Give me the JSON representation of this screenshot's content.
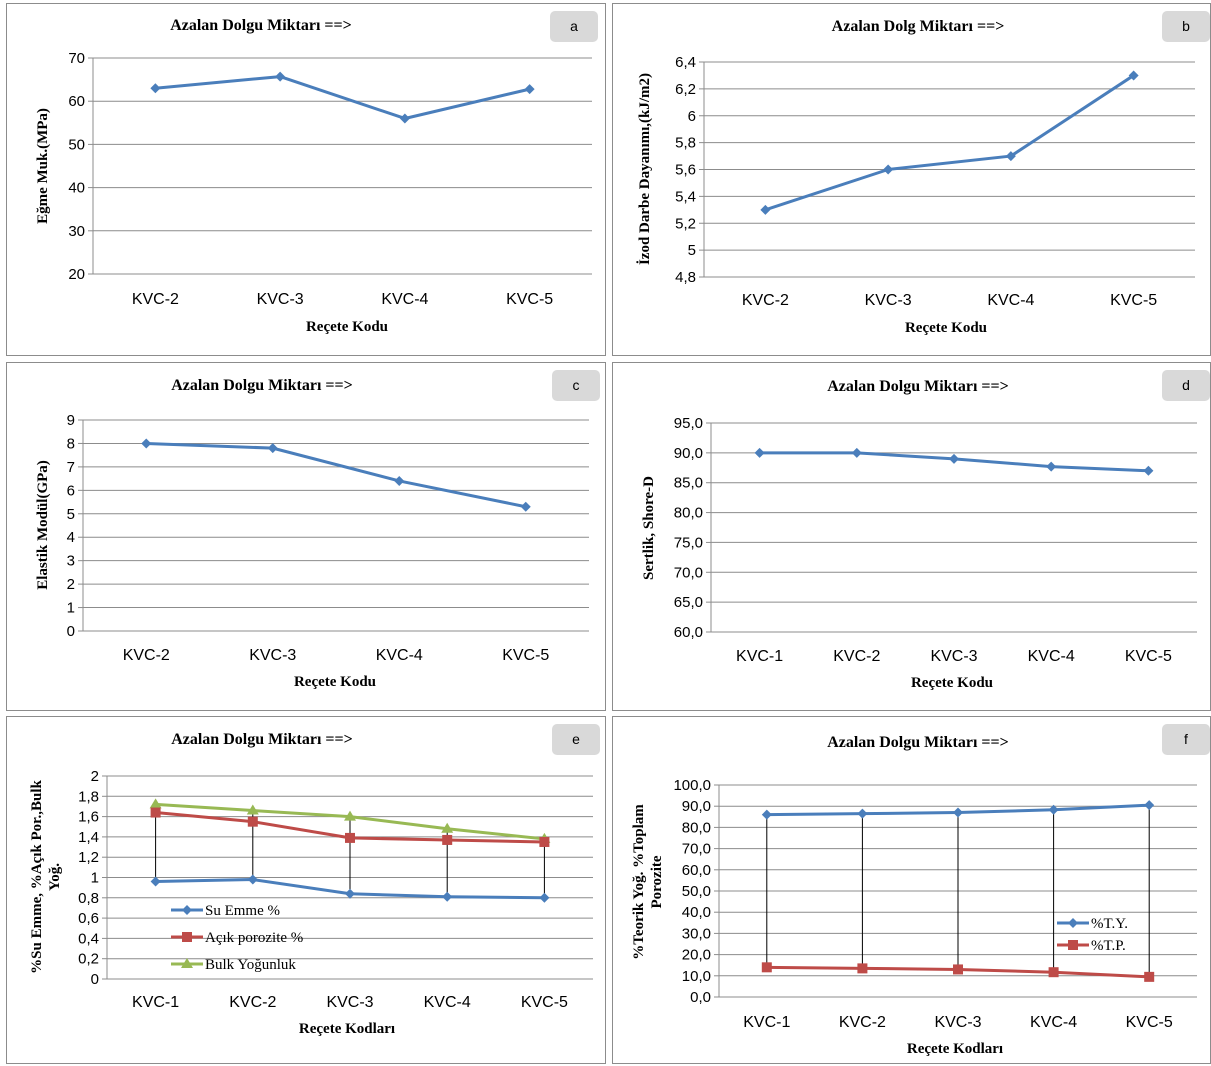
{
  "chart_data": [
    {
      "id": "a",
      "type": "line",
      "title": "Azalan Dolgu Miktarı ==>",
      "badge": "a",
      "xlabel": "Reçete Kodu",
      "ylabel": "Eğme Muk.(MPa)",
      "categories": [
        "KVC-2",
        "KVC-3",
        "KVC-4",
        "KVC-5"
      ],
      "ylim": [
        20,
        70
      ],
      "ystep": 10,
      "yticks": [
        "20",
        "30",
        "40",
        "50",
        "60",
        "70"
      ],
      "series": [
        {
          "values": [
            63,
            65.7,
            56,
            62.8
          ],
          "color": "#4a7ebb",
          "marker": "diamond"
        }
      ]
    },
    {
      "id": "b",
      "type": "line",
      "title": "Azalan Dolg Miktarı ==>",
      "badge": "b",
      "xlabel": "Reçete Kodu",
      "ylabel": "İzod Darbe Dayanımı,(kJ/m2)",
      "categories": [
        "KVC-2",
        "KVC-3",
        "KVC-4",
        "KVC-5"
      ],
      "ylim": [
        4.8,
        6.4
      ],
      "ystep": 0.2,
      "yticks": [
        "4,8",
        "5",
        "5,2",
        "5,4",
        "5,6",
        "5,8",
        "6",
        "6,2",
        "6,4"
      ],
      "series": [
        {
          "values": [
            5.3,
            5.6,
            5.7,
            6.3
          ],
          "color": "#4a7ebb",
          "marker": "diamond"
        }
      ]
    },
    {
      "id": "c",
      "type": "line",
      "title": "Azalan Dolgu Miktarı ==>",
      "badge": "c",
      "xlabel": "Reçete Kodu",
      "ylabel": "Elastik Modül(GPa)",
      "categories": [
        "KVC-2",
        "KVC-3",
        "KVC-4",
        "KVC-5"
      ],
      "ylim": [
        0,
        9
      ],
      "ystep": 1,
      "yticks": [
        "0",
        "1",
        "2",
        "3",
        "4",
        "5",
        "6",
        "7",
        "8",
        "9"
      ],
      "series": [
        {
          "values": [
            8.0,
            7.8,
            6.4,
            5.3
          ],
          "color": "#4a7ebb",
          "marker": "diamond"
        }
      ]
    },
    {
      "id": "d",
      "type": "line",
      "title": "Azalan Dolgu Miktarı ==>",
      "badge": "d",
      "xlabel": "Reçete Kodu",
      "ylabel": "Sertlik, Shore-D",
      "categories": [
        "KVC-1",
        "KVC-2",
        "KVC-3",
        "KVC-4",
        "KVC-5"
      ],
      "ylim": [
        60,
        95
      ],
      "ystep": 5,
      "yticks": [
        "60,0",
        "65,0",
        "70,0",
        "75,0",
        "80,0",
        "85,0",
        "90,0",
        "95,0"
      ],
      "series": [
        {
          "values": [
            90.0,
            90.0,
            89.0,
            87.7,
            87.0
          ],
          "color": "#4a7ebb",
          "marker": "diamond"
        }
      ]
    },
    {
      "id": "e",
      "type": "line",
      "title": "Azalan Dolgu Miktarı ==>",
      "badge": "e",
      "xlabel": "Reçete Kodları",
      "ylabel_lines": [
        "%Su Emme, %Açık Por.,Bulk",
        "Yoğ."
      ],
      "categories": [
        "KVC-1",
        "KVC-2",
        "KVC-3",
        "KVC-4",
        "KVC-5"
      ],
      "ylim": [
        0,
        2
      ],
      "ystep": 0.2,
      "yticks": [
        "0",
        "0,2",
        "0,4",
        "0,6",
        "0,8",
        "1",
        "1,2",
        "1,4",
        "1,6",
        "1,8",
        "2"
      ],
      "droplines": true,
      "series": [
        {
          "name": "Su Emme %",
          "values": [
            0.96,
            0.98,
            0.84,
            0.81,
            0.8
          ],
          "color": "#4a7ebb",
          "marker": "diamond"
        },
        {
          "name": "Açık porozite %",
          "values": [
            1.64,
            1.55,
            1.39,
            1.37,
            1.35
          ],
          "color": "#be4b48",
          "marker": "square"
        },
        {
          "name": "Bulk Yoğunluk",
          "values": [
            1.72,
            1.66,
            1.6,
            1.48,
            1.38
          ],
          "color": "#98b954",
          "marker": "triangle"
        }
      ]
    },
    {
      "id": "f",
      "type": "line",
      "title": "Azalan Dolgu Miktarı ==>",
      "badge": "f",
      "xlabel": "Reçete Kodları",
      "ylabel_lines": [
        "%Teorik Yoğ. %Toplam",
        "Porozite"
      ],
      "categories": [
        "KVC-1",
        "KVC-2",
        "KVC-3",
        "KVC-4",
        "KVC-5"
      ],
      "ylim": [
        0,
        100
      ],
      "ystep": 10,
      "yticks": [
        "0,0",
        "10,0",
        "20,0",
        "30,0",
        "40,0",
        "50,0",
        "60,0",
        "70,0",
        "80,0",
        "90,0",
        "100,0"
      ],
      "droplines": true,
      "series": [
        {
          "name": "%T.Y.",
          "values": [
            86.0,
            86.5,
            87.0,
            88.3,
            90.5
          ],
          "color": "#4a7ebb",
          "marker": "diamond"
        },
        {
          "name": "%T.P.",
          "values": [
            14.0,
            13.5,
            13.0,
            11.7,
            9.5
          ],
          "color": "#be4b48",
          "marker": "square"
        }
      ]
    }
  ]
}
